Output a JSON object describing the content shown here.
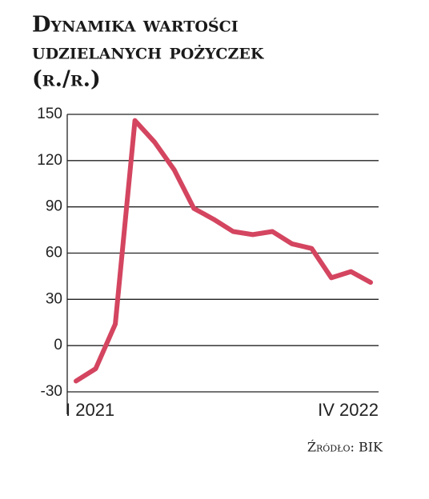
{
  "chart_data": {
    "type": "line",
    "title": [
      "Dynamika wartości",
      "udzielanych pożyczek",
      "(r./r.)"
    ],
    "source": "Źródło: BIK",
    "categories": [
      "I 2021",
      null,
      null,
      null,
      null,
      null,
      null,
      null,
      null,
      null,
      null,
      null,
      null,
      null,
      null,
      "IV 2022"
    ],
    "series": [
      {
        "name": "Dynamika",
        "color": "#d44560",
        "values": [
          -23,
          -15,
          14,
          146,
          132,
          114,
          89,
          82,
          74,
          72,
          74,
          66,
          63,
          44,
          48,
          41
        ]
      }
    ],
    "ylim": [
      -30,
      150
    ],
    "yticks": [
      -30,
      0,
      30,
      60,
      90,
      120,
      150
    ],
    "grid": true
  }
}
